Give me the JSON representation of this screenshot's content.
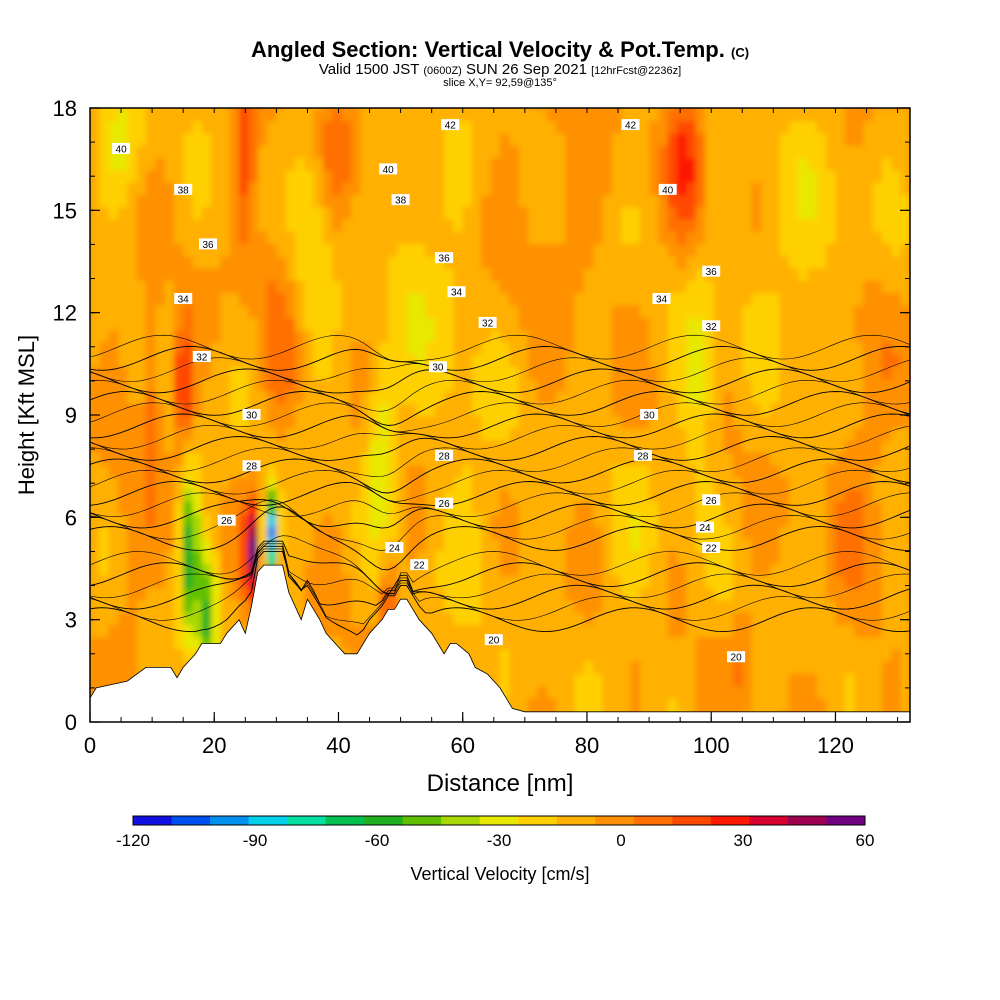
{
  "header": {
    "title": "Angled Section: Vertical Velocity & Pot.Temp.",
    "title_tag": "(C)",
    "valid_prefix": "Valid 1500 JST",
    "valid_utc": "(0600Z)",
    "valid_date": "SUN 26 Sep 2021",
    "forecast_tag": "[12hrFcst@2236z]",
    "slice": "slice X,Y= 92,59@135°"
  },
  "chart_data": {
    "type": "heatmap",
    "xlabel": "Distance [nm]",
    "ylabel": "Height [Kft MSL]",
    "xlim": [
      0,
      132
    ],
    "ylim": [
      0,
      18
    ],
    "x_ticks": [
      "0",
      "20",
      "40",
      "60",
      "80",
      "100",
      "120"
    ],
    "y_ticks": [
      "0",
      "3",
      "6",
      "9",
      "12",
      "15",
      "18"
    ],
    "colorbar": {
      "label": "Vertical Velocity [cm/s]",
      "range": [
        -120,
        60
      ],
      "ticks": [
        "-120",
        "-90",
        "-60",
        "-30",
        "0",
        "30",
        "60"
      ],
      "step": 10,
      "colors": [
        "#1010e0",
        "#0050f0",
        "#0090f0",
        "#00d0e8",
        "#00e0a0",
        "#00c050",
        "#20b020",
        "#60c000",
        "#a8d800",
        "#e8e800",
        "#ffd000",
        "#ffb000",
        "#ff9000",
        "#ff7000",
        "#ff4800",
        "#ff1800",
        "#d80030",
        "#a00050",
        "#700080"
      ]
    },
    "theta_contours": [
      {
        "value": 20,
        "labels": [
          "20",
          "20"
        ]
      },
      {
        "value": 22,
        "labels": [
          "22",
          "22"
        ]
      },
      {
        "value": 24,
        "labels": [
          "24",
          "24"
        ]
      },
      {
        "value": 26,
        "labels": [
          "26",
          "26",
          "26"
        ]
      },
      {
        "value": 28,
        "labels": [
          "28",
          "28",
          "28"
        ]
      },
      {
        "value": 30,
        "labels": [
          "30",
          "30",
          "30"
        ]
      },
      {
        "value": 32,
        "labels": [
          "32",
          "32",
          "32"
        ]
      },
      {
        "value": 34,
        "labels": [
          "34",
          "34",
          "34"
        ]
      },
      {
        "value": 36,
        "labels": [
          "36",
          "36",
          "36"
        ]
      },
      {
        "value": 38,
        "labels": [
          "38",
          "38"
        ]
      },
      {
        "value": 40,
        "labels": [
          "40",
          "40",
          "40"
        ]
      },
      {
        "value": 42,
        "labels": [
          "42",
          "42"
        ]
      }
    ],
    "terrain_profile_kft": [
      [
        0,
        0.7
      ],
      [
        1,
        1
      ],
      [
        6,
        1.2
      ],
      [
        9,
        1.6
      ],
      [
        13,
        1.6
      ],
      [
        14,
        1.3
      ],
      [
        15,
        1.6
      ],
      [
        17,
        2.0
      ],
      [
        18,
        2.3
      ],
      [
        21,
        2.3
      ],
      [
        22,
        2.6
      ],
      [
        24,
        3.0
      ],
      [
        25,
        2.6
      ],
      [
        26,
        3.4
      ],
      [
        27,
        4.4
      ],
      [
        28,
        4.6
      ],
      [
        31,
        4.6
      ],
      [
        32,
        3.8
      ],
      [
        34,
        3.0
      ],
      [
        35,
        3.6
      ],
      [
        37,
        3.0
      ],
      [
        38,
        2.6
      ],
      [
        40,
        2.2
      ],
      [
        41,
        2.0
      ],
      [
        43,
        2.0
      ],
      [
        44,
        2.3
      ],
      [
        45,
        2.6
      ],
      [
        47,
        3.0
      ],
      [
        48,
        3.3
      ],
      [
        49,
        3.3
      ],
      [
        50,
        3.6
      ],
      [
        51,
        3.6
      ],
      [
        53,
        3.0
      ],
      [
        55,
        2.6
      ],
      [
        57,
        2.0
      ],
      [
        58,
        2.3
      ],
      [
        59,
        2.3
      ],
      [
        61,
        2.0
      ],
      [
        62,
        1.6
      ],
      [
        64,
        1.4
      ],
      [
        66,
        1.0
      ],
      [
        67,
        0.7
      ],
      [
        68,
        0.4
      ],
      [
        70,
        0.3
      ],
      [
        132,
        0.3
      ]
    ]
  }
}
